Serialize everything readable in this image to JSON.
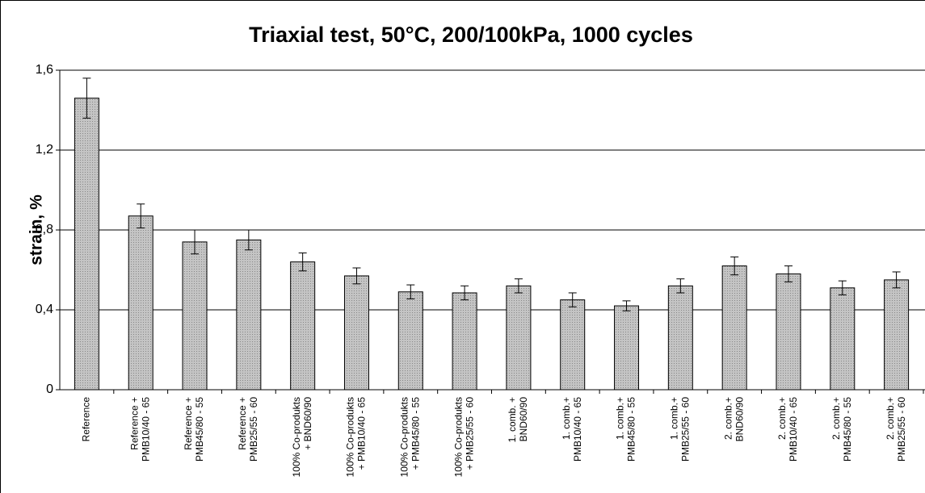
{
  "chart_data": {
    "type": "bar",
    "title": "Triaxial test, 50°C, 200/100kPa, 1000 cycles",
    "y_label": "strain, %",
    "categories": [
      [
        "Reference"
      ],
      [
        "Reference +",
        "PMB10/40 - 65"
      ],
      [
        "Reference +",
        "PMB45/80 - 55"
      ],
      [
        "Reference +",
        "PMB25/55 - 60"
      ],
      [
        "100% Co-produkts",
        "+ BND60/90"
      ],
      [
        "100% Co-produkts",
        "+ PMB10/40 - 65"
      ],
      [
        "100% Co-produkts",
        "+ PMB45/80 - 55"
      ],
      [
        "100% Co-produkts",
        "+ PMB25/55 - 60"
      ],
      [
        "1. comb. +",
        "BND60/90"
      ],
      [
        "1. comb.+",
        "PMB10/40 - 65"
      ],
      [
        "1. comb.+",
        "PMB45/80 - 55"
      ],
      [
        "1. comb.+",
        "PMB25/55 - 60"
      ],
      [
        "2. comb.+",
        "BND60/90"
      ],
      [
        "2. comb.+",
        "PMB10/40 - 65"
      ],
      [
        "2. comb.+",
        "PMB45/80 - 55"
      ],
      [
        "2. comb.+",
        "PMB25/55 - 60"
      ]
    ],
    "values": [
      1.46,
      0.87,
      0.74,
      0.75,
      0.64,
      0.57,
      0.49,
      0.485,
      0.52,
      0.45,
      0.42,
      0.52,
      0.62,
      0.58,
      0.51,
      0.55
    ],
    "errors": [
      0.1,
      0.06,
      0.06,
      0.05,
      0.045,
      0.04,
      0.035,
      0.035,
      0.035,
      0.035,
      0.025,
      0.035,
      0.045,
      0.04,
      0.035,
      0.04
    ],
    "color": "#c4c4c4",
    "ylim": [
      0,
      1.6
    ],
    "yticks": [
      0,
      {
        "value": 0.4,
        "label": "0,4"
      },
      {
        "value": 0.8,
        "label": "0,8"
      },
      {
        "value": 1.2,
        "label": "1,2"
      },
      {
        "value": 1.6,
        "label": "1,6"
      }
    ],
    "grid": true
  }
}
